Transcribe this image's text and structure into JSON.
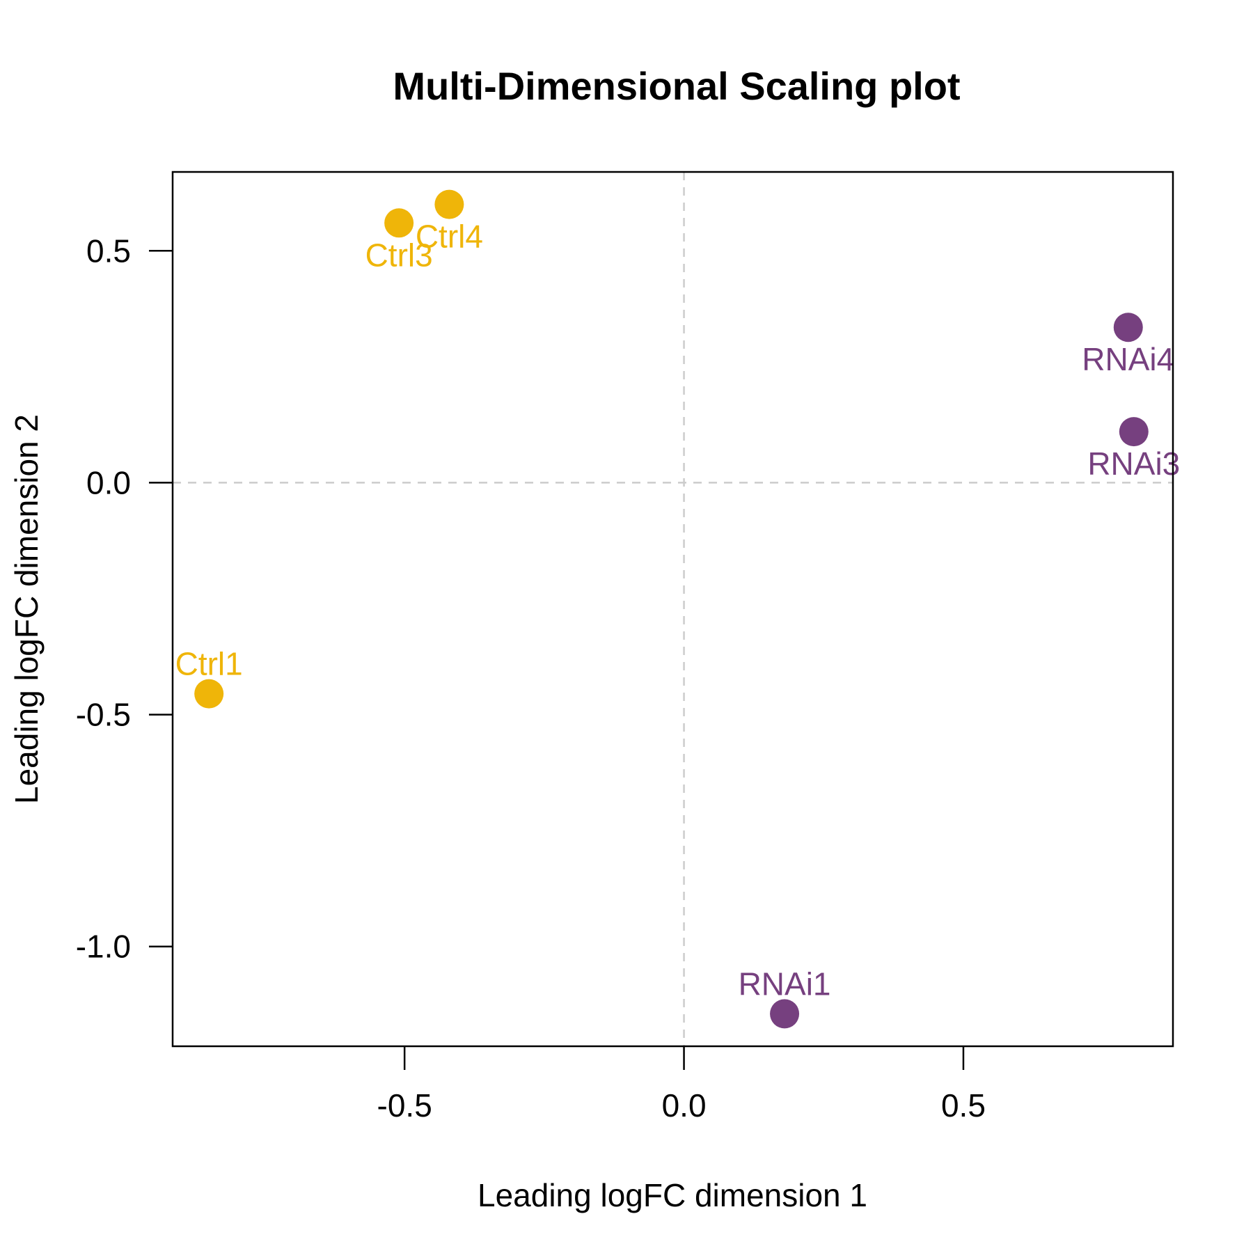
{
  "chart_data": {
    "type": "scatter",
    "title": "Multi-Dimensional Scaling plot",
    "xlabel": "Leading logFC dimension 1",
    "ylabel": "Leading logFC dimension 2",
    "xlim": [
      -0.915,
      0.875
    ],
    "ylim": [
      -1.215,
      0.67
    ],
    "xticks": [
      -0.5,
      0.0,
      0.5
    ],
    "yticks": [
      0.5,
      0.0,
      -0.5,
      -1.0
    ],
    "xtick_labels": [
      "-0.5",
      "0.0",
      "0.5"
    ],
    "ytick_labels": [
      "0.5",
      "0.0",
      "-0.5",
      "-1.0"
    ],
    "grid": false,
    "reference_lines": {
      "x": 0.0,
      "y": 0.0,
      "style": "dashed",
      "color": "#cccccc"
    },
    "series": [
      {
        "name": "Ctrl",
        "color": "#EFB509",
        "points": [
          {
            "label": "Ctrl1",
            "x": -0.85,
            "y": -0.455,
            "label_pos": "above"
          },
          {
            "label": "Ctrl3",
            "x": -0.51,
            "y": 0.56,
            "label_pos": "below"
          },
          {
            "label": "Ctrl4",
            "x": -0.42,
            "y": 0.6,
            "label_pos": "below"
          }
        ]
      },
      {
        "name": "RNAi",
        "color": "#76407F",
        "points": [
          {
            "label": "RNAi1",
            "x": 0.18,
            "y": -1.145,
            "label_pos": "above"
          },
          {
            "label": "RNAi3",
            "x": 0.805,
            "y": 0.11,
            "label_pos": "below"
          },
          {
            "label": "RNAi4",
            "x": 0.795,
            "y": 0.335,
            "label_pos": "below"
          }
        ]
      }
    ]
  }
}
